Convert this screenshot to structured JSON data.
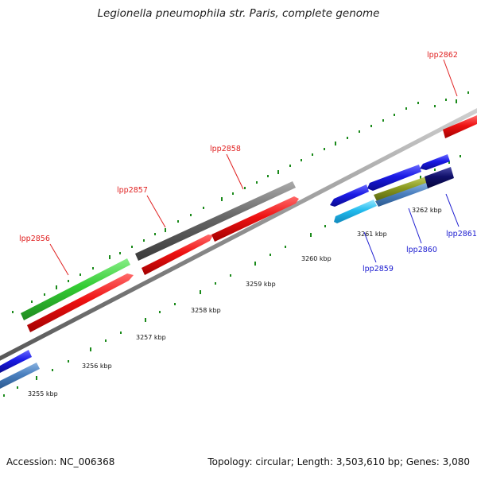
{
  "title": "Legionella pneumophila str. Paris, complete genome",
  "footer": {
    "accession": "Accession: NC_006368",
    "topology": "Topology: circular; Length: 3,503,610 bp; Genes: 3,080"
  },
  "colors": {
    "backbone": "#8c8c8c",
    "forward_red": "#ee1111",
    "green": "#33cc33",
    "gray": "#666666",
    "blue": "#1a1ae6",
    "light_blue": "#22bbee",
    "olive": "#8a9a22",
    "steel_blue": "#4a7fbf",
    "navy": "#10106a",
    "tick_green": "#1a8a1a"
  },
  "kbp_labels": [
    "3255 kbp",
    "3256 kbp",
    "3257 kbp",
    "3258 kbp",
    "3259 kbp",
    "3260 kbp",
    "3261 kbp",
    "3262 kbp"
  ],
  "gene_labels": {
    "lpp2856": "lpp2856",
    "lpp2857": "lpp2857",
    "lpp2858": "lpp2858",
    "lpp2862": "lpp2862",
    "lpp2859": "lpp2859",
    "lpp2860": "lpp2860",
    "lpp2861": "lpp2861"
  }
}
